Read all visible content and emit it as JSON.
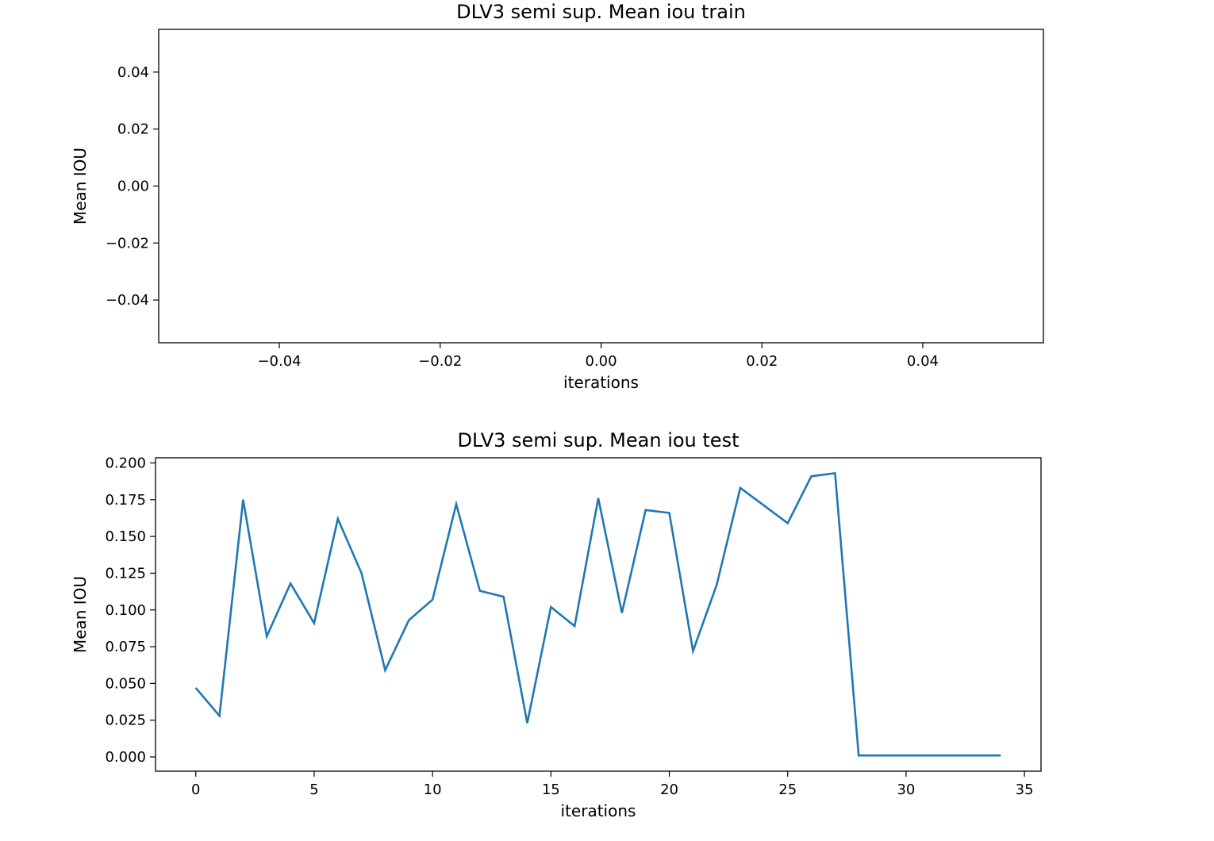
{
  "chart_data": [
    {
      "type": "line",
      "title": "DLV3 semi sup. Mean iou train",
      "xlabel": "iterations",
      "ylabel": "Mean IOU",
      "xlim": [
        -0.055,
        0.055
      ],
      "ylim": [
        -0.055,
        0.055
      ],
      "xticks": [
        -0.04,
        -0.02,
        0.0,
        0.02,
        0.04
      ],
      "xtick_labels": [
        "−0.04",
        "−0.02",
        "0.00",
        "0.02",
        "0.04"
      ],
      "yticks": [
        0.04,
        0.02,
        0.0,
        -0.02,
        -0.04
      ],
      "ytick_labels": [
        "0.04",
        "0.02",
        "0.00",
        "−0.02",
        "−0.04"
      ],
      "grid": false,
      "series": [
        {
          "color": "#1f77b4",
          "x": [],
          "y": []
        }
      ]
    },
    {
      "type": "line",
      "title": "DLV3 semi sup. Mean iou test",
      "xlabel": "iterations",
      "ylabel": "Mean IOU",
      "xlim": [
        -1.7,
        35.7
      ],
      "ylim": [
        -0.0097,
        0.2035
      ],
      "xticks": [
        0,
        5,
        10,
        15,
        20,
        25,
        30,
        35
      ],
      "xtick_labels": [
        "0",
        "5",
        "10",
        "15",
        "20",
        "25",
        "30",
        "35"
      ],
      "yticks": [
        0.2,
        0.175,
        0.15,
        0.125,
        0.1,
        0.075,
        0.05,
        0.025,
        0.0
      ],
      "ytick_labels": [
        "0.200",
        "0.175",
        "0.150",
        "0.125",
        "0.100",
        "0.075",
        "0.050",
        "0.025",
        "0.000"
      ],
      "grid": false,
      "series": [
        {
          "color": "#1f77b4",
          "x": [
            0,
            1,
            2,
            3,
            4,
            5,
            6,
            7,
            8,
            9,
            10,
            11,
            12,
            13,
            14,
            15,
            16,
            17,
            18,
            19,
            20,
            21,
            22,
            23,
            24,
            25,
            26,
            27,
            28,
            29,
            30,
            31,
            32,
            33,
            34
          ],
          "y": [
            0.047,
            0.028,
            0.175,
            0.082,
            0.118,
            0.091,
            0.162,
            0.125,
            0.059,
            0.093,
            0.107,
            0.172,
            0.113,
            0.109,
            0.023,
            0.102,
            0.089,
            0.176,
            0.098,
            0.168,
            0.166,
            0.072,
            0.117,
            0.183,
            0.171,
            0.159,
            0.191,
            0.193,
            0.001,
            0.001,
            0.001,
            0.001,
            0.001,
            0.001,
            0.001
          ]
        }
      ]
    }
  ]
}
